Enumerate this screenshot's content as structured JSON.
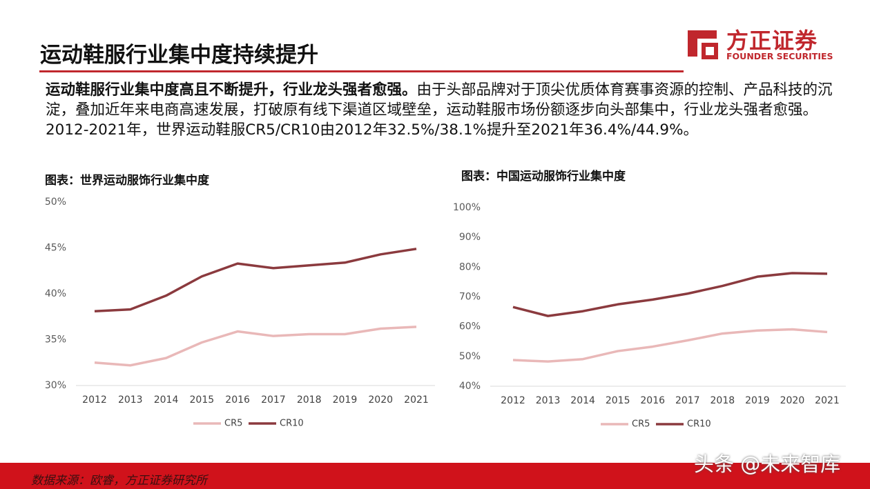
{
  "title": "运动鞋服行业集中度持续提升",
  "logo": {
    "name": "方正证券",
    "english": "FOUNDER SECURITIES"
  },
  "summary": {
    "lead": "运动鞋服行业集中度高且不断提升，行业龙头强者愈强。",
    "body": "由于头部品牌对于顶尖优质体育赛事资源的控制、产品科技的沉淀，叠加近年来电商高速发展，打破原有线下渠道区域壁垒，运动鞋服市场份额逐步向头部集中，行业龙头强者愈强。2012-2021年，世界运动鞋服CR5/CR10由2012年32.5%/38.1%提升至2021年36.4%/44.9%。"
  },
  "chart_data": [
    {
      "type": "line",
      "title": "图表：世界运动服饰行业集中度",
      "categories": [
        "2012",
        "2013",
        "2014",
        "2015",
        "2016",
        "2017",
        "2018",
        "2019",
        "2020",
        "2021"
      ],
      "series": [
        {
          "name": "CR5",
          "color": "#e9b8b8",
          "values": [
            32.5,
            32.2,
            33.0,
            34.7,
            35.9,
            35.4,
            35.6,
            35.6,
            36.2,
            36.4
          ]
        },
        {
          "name": "CR10",
          "color": "#8b3a3e",
          "values": [
            38.1,
            38.3,
            39.8,
            41.9,
            43.3,
            42.8,
            43.1,
            43.4,
            44.3,
            44.9
          ]
        }
      ],
      "ylim": [
        30,
        50
      ],
      "yticks": [
        {
          "value": 30,
          "label": "30%"
        },
        {
          "value": 35,
          "label": "35%"
        },
        {
          "value": 40,
          "label": "40%"
        },
        {
          "value": 45,
          "label": "45%"
        },
        {
          "value": 50,
          "label": "50%"
        }
      ],
      "grid": false,
      "legend": "bottom"
    },
    {
      "type": "line",
      "title": "图表：中国运动服饰行业集中度",
      "categories": [
        "2012",
        "2013",
        "2014",
        "2015",
        "2016",
        "2017",
        "2018",
        "2019",
        "2020",
        "2021"
      ],
      "series": [
        {
          "name": "CR5",
          "color": "#e9b8b8",
          "values": [
            48.8,
            48.3,
            49.1,
            51.8,
            53.3,
            55.4,
            57.7,
            58.7,
            59.1,
            58.2
          ]
        },
        {
          "name": "CR10",
          "color": "#8b3a3e",
          "values": [
            66.6,
            63.6,
            65.2,
            67.5,
            69.1,
            71.1,
            73.7,
            76.8,
            78.0,
            77.8
          ]
        }
      ],
      "ylim": [
        40,
        100
      ],
      "yticks": [
        {
          "value": 40,
          "label": "40%"
        },
        {
          "value": 50,
          "label": "50%"
        },
        {
          "value": 60,
          "label": "60%"
        },
        {
          "value": 70,
          "label": "70%"
        },
        {
          "value": 80,
          "label": "80%"
        },
        {
          "value": 90,
          "label": "90%"
        },
        {
          "value": 100,
          "label": "100%"
        }
      ],
      "grid": false,
      "legend": "bottom"
    }
  ],
  "source": "数据来源：欧睿，方正证券研究所",
  "watermark": "头条 @未来智库"
}
